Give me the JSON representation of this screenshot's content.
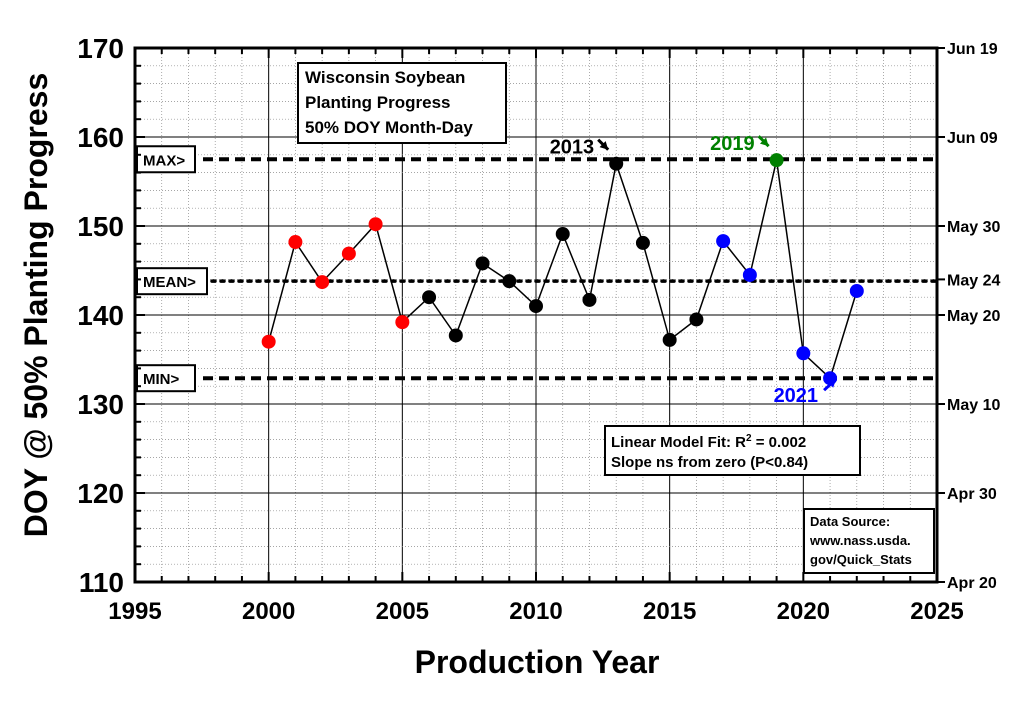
{
  "chart_data": {
    "type": "scatter",
    "xlabel": "Production Year",
    "ylabel": "DOY @ 50% Planting  Progress",
    "xlim": [
      1995,
      2025
    ],
    "ylim": [
      110,
      170
    ],
    "x_ticks": [
      "1995",
      "2000",
      "2005",
      "2010",
      "2015",
      "2020",
      "2025"
    ],
    "y_ticks": [
      "110",
      "120",
      "130",
      "140",
      "150",
      "160",
      "170"
    ],
    "right_axis": {
      "ticks": [
        {
          "doy": 110,
          "label": "Apr 20"
        },
        {
          "doy": 120,
          "label": "Apr 30"
        },
        {
          "doy": 130,
          "label": "May 10"
        },
        {
          "doy": 140,
          "label": "May 20"
        },
        {
          "doy": 144,
          "label": "May 24"
        },
        {
          "doy": 150,
          "label": "May 30"
        },
        {
          "doy": 160,
          "label": "Jun 09"
        },
        {
          "doy": 170,
          "label": "Jun 19"
        }
      ]
    },
    "grid": true,
    "title_box": [
      "Wisconsin Soybean",
      "Planting Progress",
      "50% DOY Month-Day"
    ],
    "series": [
      {
        "x": [
          2000,
          2001,
          2002,
          2003,
          2004,
          2005,
          2006,
          2007,
          2008,
          2009,
          2010,
          2011,
          2012,
          2013,
          2014,
          2015,
          2016,
          2017,
          2018,
          2019,
          2020,
          2021,
          2022
        ],
        "y": [
          137,
          148.2,
          143.7,
          146.9,
          150.2,
          139.2,
          142,
          137.7,
          145.8,
          143.8,
          141,
          149.1,
          141.7,
          157,
          148.1,
          137.2,
          139.5,
          148.3,
          144.5,
          157.4,
          135.7,
          132.9,
          142.7
        ],
        "point_colors": [
          "#ff0000",
          "#ff0000",
          "#ff0000",
          "#ff0000",
          "#ff0000",
          "#ff0000",
          "#000000",
          "#000000",
          "#000000",
          "#000000",
          "#000000",
          "#000000",
          "#000000",
          "#000000",
          "#000000",
          "#000000",
          "#000000",
          "#0000ff",
          "#0000ff",
          "#008000",
          "#0000ff",
          "#0000ff",
          "#0000ff"
        ],
        "line_color": "#000000"
      }
    ],
    "reference_lines": [
      {
        "label": "MAX>",
        "value": 157.5,
        "style": "dashed"
      },
      {
        "label": "MEAN>",
        "value": 143.8,
        "style": "dotted"
      },
      {
        "label": "MIN>",
        "value": 132.9,
        "style": "dashed"
      }
    ],
    "annotations": [
      {
        "text": "2013",
        "x": 2013,
        "y": 157,
        "color": "#000000"
      },
      {
        "text": "2019",
        "x": 2019,
        "y": 157.4,
        "color": "#008000"
      },
      {
        "text": "2021",
        "x": 2021,
        "y": 132.9,
        "color": "#0000ff"
      }
    ],
    "fit_box": {
      "line1_prefix": "Linear  Model Fit: R",
      "line1_sup": "2",
      "line1_suffix": " = 0.002",
      "line2": "Slope ns from zero (P<0.84)"
    },
    "source_box": [
      "Data Source:",
      "www.nass.usda.",
      "gov/Quick_Stats"
    ]
  }
}
